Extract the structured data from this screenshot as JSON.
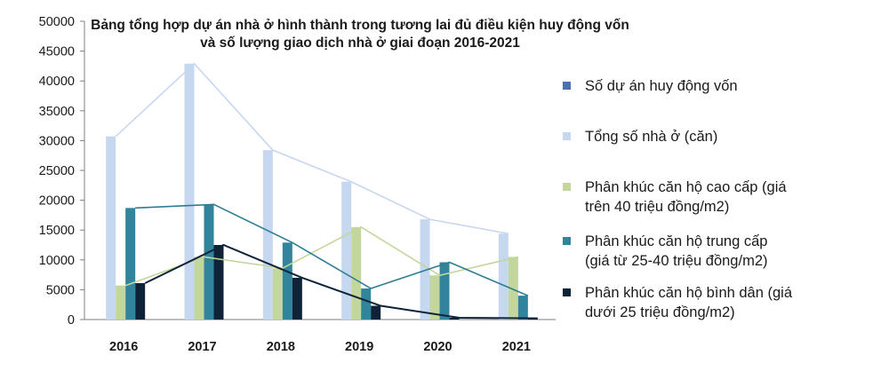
{
  "chart_data": {
    "type": "bar",
    "title_line1": "Bảng tổng hợp dự án nhà ở hình thành trong tương lai đủ điều kiện huy động vốn",
    "title_line2": "và số lượng giao dịch nhà ở giai đoạn 2016-2021",
    "categories": [
      "2016",
      "2017",
      "2018",
      "2019",
      "2020",
      "2021"
    ],
    "y_ticks": [
      "0",
      "5000",
      "10000",
      "15000",
      "20000",
      "25000",
      "30000",
      "35000",
      "40000",
      "45000",
      "50000"
    ],
    "ylim": [
      0,
      50000
    ],
    "grid": false,
    "legend_position": "right",
    "series": [
      {
        "name": "Số dự án huy động vốn",
        "color": "#4a72b0",
        "values": [
          0,
          0,
          0,
          0,
          0,
          0
        ]
      },
      {
        "name": "Tổng số nhà ở (căn)",
        "color": "#c6d7f0",
        "values": [
          30700,
          42900,
          28400,
          23100,
          16800,
          14400
        ]
      },
      {
        "name": "Phân khúc căn hộ cao cấp (giá trên 40 triệu đồng/m2)",
        "color": "#c3d69b",
        "values": [
          5700,
          10500,
          8600,
          15500,
          7400,
          10500
        ]
      },
      {
        "name": "Phân khúc căn hộ trung cấp (giá từ 25-40 triệu đồng/m2)",
        "color": "#31849b",
        "values": [
          18700,
          19300,
          12900,
          5200,
          9600,
          4000
        ]
      },
      {
        "name": "Phân khúc căn hộ bình dân (giá dưới 25 triệu đồng/m2)",
        "color": "#0f2338",
        "values": [
          6100,
          12500,
          7000,
          2300,
          300,
          200
        ]
      }
    ],
    "legend_lines": [
      [
        "Số dự án huy động vốn"
      ],
      [
        "Tổng số nhà ở (căn)"
      ],
      [
        "Phân khúc căn hộ cao cấp (giá",
        "trên 40 triệu đồng/m2)"
      ],
      [
        "Phân khúc căn hộ trung cấp",
        "(giá từ 25-40 triệu đồng/m2)"
      ],
      [
        "Phân khúc căn hộ bình dân (giá",
        "dưới 25 triệu đồng/m2)"
      ]
    ]
  }
}
